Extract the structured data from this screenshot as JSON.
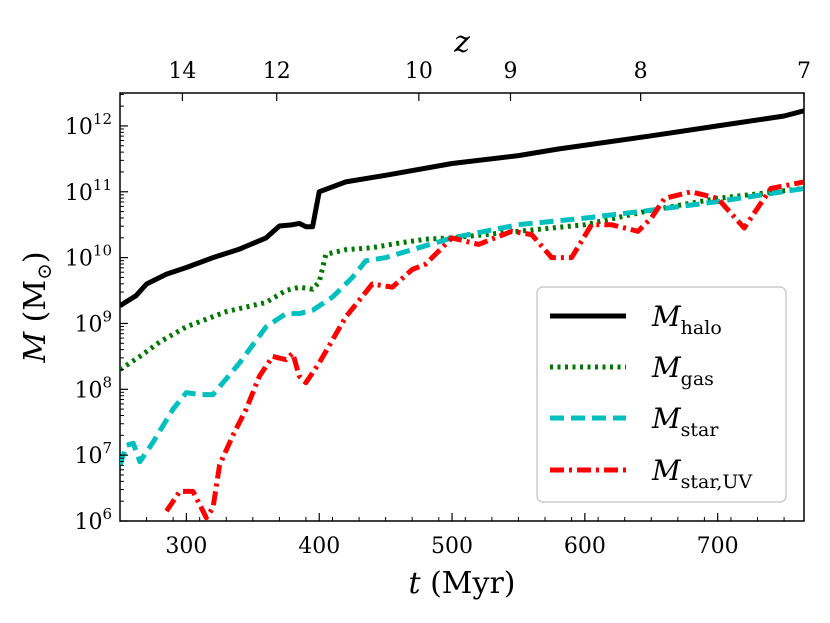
{
  "chart_data": {
    "type": "line",
    "title": "",
    "xlabel": "t (Myr)",
    "ylabel": "M (M⊙)",
    "xlim": [
      250,
      765
    ],
    "ylim_log10": [
      6,
      12.5
    ],
    "yscale": "log",
    "grid": false,
    "x_ticks": [
      300,
      400,
      500,
      600,
      700
    ],
    "y_ticks_exponents": [
      6,
      7,
      8,
      9,
      10,
      11,
      12
    ],
    "y_tick_base": "10",
    "top_axis": {
      "label": "z",
      "ticks": [
        {
          "label": "14",
          "t": 297
        },
        {
          "label": "12",
          "t": 368
        },
        {
          "label": "10",
          "t": 475
        },
        {
          "label": "9",
          "t": 544
        },
        {
          "label": "8",
          "t": 642
        },
        {
          "label": "7",
          "t": 765
        }
      ]
    },
    "legend_placement": "lower-right",
    "series": [
      {
        "name": "M_halo",
        "label_main": "M",
        "label_sub": "halo",
        "color": "#000000",
        "style": "solid",
        "x": [
          250,
          262,
          270,
          285,
          300,
          320,
          340,
          360,
          370,
          380,
          385,
          390,
          395,
          400,
          420,
          450,
          500,
          550,
          580,
          650,
          700,
          750,
          765
        ],
        "log10y": [
          9.27,
          9.42,
          9.6,
          9.75,
          9.85,
          10.0,
          10.13,
          10.3,
          10.48,
          10.5,
          10.52,
          10.47,
          10.47,
          11.0,
          11.15,
          11.25,
          11.43,
          11.55,
          11.65,
          11.85,
          12.0,
          12.15,
          12.23
        ]
      },
      {
        "name": "M_gas",
        "label_main": "M",
        "label_sub": "gas",
        "color": "#007700",
        "style": "dotted",
        "x": [
          250,
          265,
          280,
          300,
          330,
          360,
          375,
          385,
          395,
          400,
          405,
          420,
          440,
          460,
          480,
          500,
          550,
          600,
          650,
          700,
          765
        ],
        "log10y": [
          8.3,
          8.5,
          8.72,
          8.95,
          9.18,
          9.32,
          9.5,
          9.55,
          9.52,
          9.63,
          10.05,
          10.12,
          10.15,
          10.22,
          10.28,
          10.3,
          10.4,
          10.5,
          10.72,
          10.9,
          11.05
        ]
      },
      {
        "name": "M_star",
        "label_main": "M",
        "label_sub": "star",
        "color": "#00bfbf",
        "style": "dashed",
        "x": [
          250,
          255,
          260,
          265,
          275,
          290,
          300,
          310,
          320,
          340,
          360,
          375,
          385,
          395,
          410,
          425,
          435,
          450,
          500,
          550,
          600,
          650,
          700,
          765
        ],
        "log10y": [
          6.85,
          7.15,
          7.18,
          6.9,
          7.2,
          7.7,
          7.95,
          7.92,
          7.92,
          8.4,
          8.95,
          9.15,
          9.15,
          9.2,
          9.4,
          9.7,
          9.95,
          10.0,
          10.3,
          10.5,
          10.6,
          10.72,
          10.85,
          11.05
        ]
      },
      {
        "name": "M_star_UV",
        "label_main": "M",
        "label_sub": "star,UV",
        "color": "#ff0000",
        "style": "dashdot",
        "x": [
          285,
          295,
          305,
          315,
          320,
          325,
          335,
          345,
          355,
          365,
          375,
          380,
          385,
          390,
          400,
          420,
          440,
          455,
          470,
          480,
          500,
          520,
          545,
          560,
          575,
          590,
          605,
          620,
          640,
          650,
          660,
          680,
          700,
          720,
          740,
          765
        ],
        "log10y": [
          6.15,
          6.45,
          6.45,
          6.05,
          6.2,
          6.85,
          7.3,
          7.7,
          8.2,
          8.5,
          8.45,
          8.55,
          8.2,
          8.1,
          8.4,
          9.1,
          9.6,
          9.55,
          9.82,
          9.9,
          10.3,
          10.2,
          10.4,
          10.35,
          10.0,
          10.0,
          10.5,
          10.5,
          10.4,
          10.6,
          10.9,
          11.0,
          10.9,
          10.45,
          11.05,
          11.15
        ]
      }
    ]
  }
}
